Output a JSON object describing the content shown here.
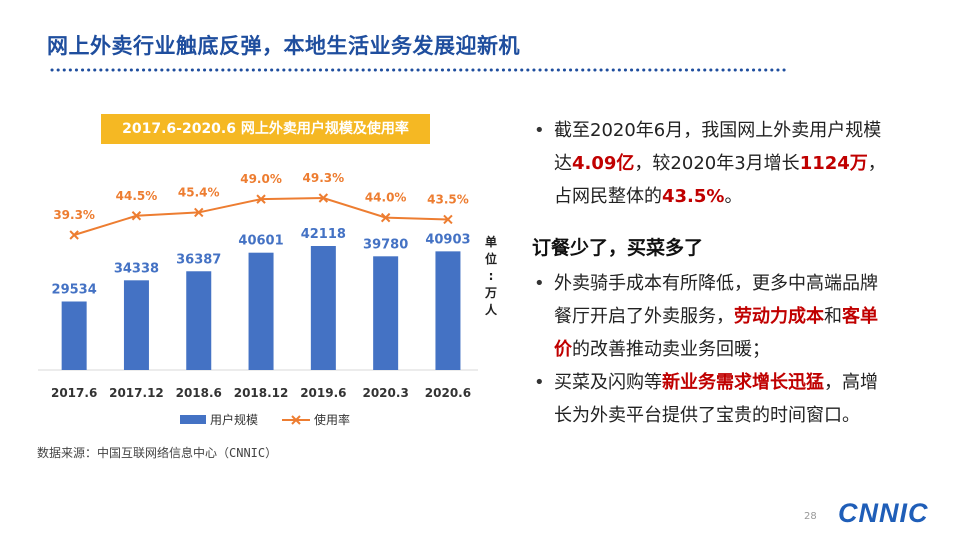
{
  "title": "网上外卖行业触底反弹，本地生活业务发展迎新机",
  "chart_title": "2017.6-2020.6 网上外卖用户规模及使用率",
  "unit_label": [
    "单",
    "位",
    ":",
    "万",
    "人"
  ],
  "source": "数据来源：中国互联网络信息中心（CNNIC）",
  "page_number": "28",
  "logo": "CNNIC",
  "colors": {
    "title": "#1f4e9e",
    "bar": "#4472c4",
    "line": "#ed7d31",
    "label_orange": "#ed7d31",
    "red": "#c00000",
    "badge": "#f5b823"
  },
  "chart_data": {
    "type": "bar",
    "categories": [
      "2017.6",
      "2017.12",
      "2018.6",
      "2018.12",
      "2019.6",
      "2020.3",
      "2020.6"
    ],
    "series": [
      {
        "name": "用户规模",
        "type": "bar",
        "values": [
          29534,
          34338,
          36387,
          40601,
          42118,
          39780,
          40903
        ]
      },
      {
        "name": "使用率",
        "type": "line",
        "values": [
          39.3,
          44.5,
          45.4,
          49.0,
          49.3,
          44.0,
          43.5
        ],
        "labels": [
          "39.3%",
          "44.5%",
          "45.4%",
          "49.0%",
          "49.3%",
          "44.0%",
          "43.5%"
        ]
      }
    ],
    "value_labels": [
      "29534",
      "34338",
      "36387",
      "40601",
      "42118",
      "39780",
      "40903"
    ],
    "legend": [
      "用户规模",
      "使用率"
    ],
    "legend_position": "bottom",
    "ylim_bar": [
      0,
      55000
    ],
    "ylim_line": [
      0,
      60
    ]
  },
  "bullets": {
    "b1": {
      "p1": "截至2020年6月，我国网上外卖用户规模达",
      "h1": "4.09亿",
      "p2": "，较2020年3月增长",
      "h2": "1124万",
      "p3": "，占网民整体的",
      "h3": "43.5%",
      "p4": "。"
    },
    "heading": "订餐少了，买菜多了",
    "b2": {
      "p1": "外卖骑手成本有所降低，更多中高端品牌餐厅开启了外卖服务，",
      "h1": "劳动力成本",
      "p2": "和",
      "h2": "客单价",
      "p3": "的改善推动卖业务回暖；"
    },
    "b3": {
      "p1": "买菜及闪购等",
      "h1": "新业务需求增长迅猛",
      "p2": "，高增长为外卖平台提供了宝贵的时间窗口。"
    }
  }
}
